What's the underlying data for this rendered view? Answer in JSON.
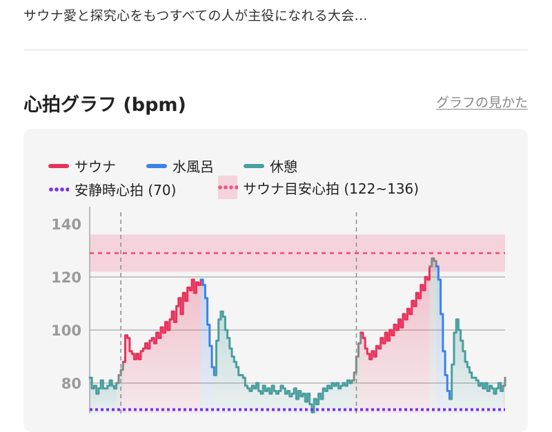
{
  "intro_text": "サウナ愛と探究心をもつすべての人が主役になれる大会...",
  "section": {
    "title": "心拍グラフ (bpm)",
    "help_link": "グラフの見かた"
  },
  "legend": {
    "sauna": "サウナ",
    "cold_bath": "水風呂",
    "rest": "休憩",
    "resting_hr": "安静時心拍 (70)",
    "sauna_target": "サウナ目安心拍 (122~136)"
  },
  "colors": {
    "sauna": "#e8315b",
    "cold_bath": "#3b82e6",
    "rest": "#4a9e9e",
    "transition": "#888888",
    "resting_hr": "#7b2ff0",
    "target_band": "#f5d3dd",
    "target_line": "#ea5a82",
    "card_bg": "#f5f5f5"
  },
  "chart_data": {
    "type": "line",
    "ylabel": "",
    "xlabel": "",
    "yticks": [
      80,
      100,
      120,
      140
    ],
    "resting_hr": 70,
    "target_range": [
      122,
      136
    ],
    "target_mid": 129,
    "session_markers": [
      0.075,
      0.642
    ],
    "segments": [
      {
        "phase": "rest",
        "values": [
          82,
          78,
          79,
          76,
          78,
          81,
          78,
          78,
          79,
          81,
          79,
          78,
          80
        ]
      },
      {
        "phase": "transition",
        "values": [
          80,
          83,
          85,
          88
        ]
      },
      {
        "phase": "sauna",
        "values": [
          88,
          98,
          97,
          92,
          91,
          89,
          91,
          89,
          92,
          93,
          95,
          93,
          96,
          97,
          95,
          99,
          97,
          101,
          99,
          103,
          100,
          104,
          107,
          103,
          109,
          112,
          106,
          114,
          111,
          116,
          115,
          119,
          114,
          118,
          117,
          119
        ]
      },
      {
        "phase": "cold_bath",
        "values": [
          119,
          117,
          112,
          102,
          94,
          86,
          83
        ]
      },
      {
        "phase": "rest",
        "values": [
          83,
          96,
          104,
          107,
          105,
          100,
          97,
          93,
          90,
          88,
          86,
          83,
          83,
          82,
          79,
          78,
          77,
          79,
          78,
          80,
          77,
          76,
          79,
          77,
          78,
          76,
          79,
          77,
          76,
          77,
          79,
          78,
          76,
          77,
          75,
          76,
          78,
          74,
          77,
          75,
          76,
          73,
          76,
          72,
          69,
          74,
          72,
          76,
          74,
          78,
          77,
          79,
          78,
          80,
          79,
          80,
          78,
          79,
          80,
          79,
          81,
          80,
          81
        ]
      },
      {
        "phase": "transition",
        "values": [
          81,
          84,
          90,
          95,
          99
        ]
      },
      {
        "phase": "sauna",
        "values": [
          99,
          97,
          93,
          91,
          89,
          92,
          90,
          94,
          93,
          97,
          95,
          99,
          96,
          100,
          98,
          102,
          100,
          104,
          101,
          106,
          104,
          108,
          106,
          111,
          109,
          114,
          112,
          117,
          115,
          120,
          119,
          124
        ]
      },
      {
        "phase": "transition",
        "values": [
          124,
          127,
          126,
          124
        ]
      },
      {
        "phase": "cold_bath",
        "values": [
          124,
          119,
          106,
          92,
          83,
          77,
          74
        ]
      },
      {
        "phase": "rest",
        "values": [
          74,
          87,
          99,
          104,
          100,
          96,
          92,
          88,
          86,
          84,
          82,
          82,
          81,
          79,
          80,
          78,
          80,
          77,
          79,
          78,
          76,
          78,
          80,
          77,
          79
        ]
      },
      {
        "phase": "transition",
        "values": [
          79,
          82
        ]
      }
    ]
  }
}
